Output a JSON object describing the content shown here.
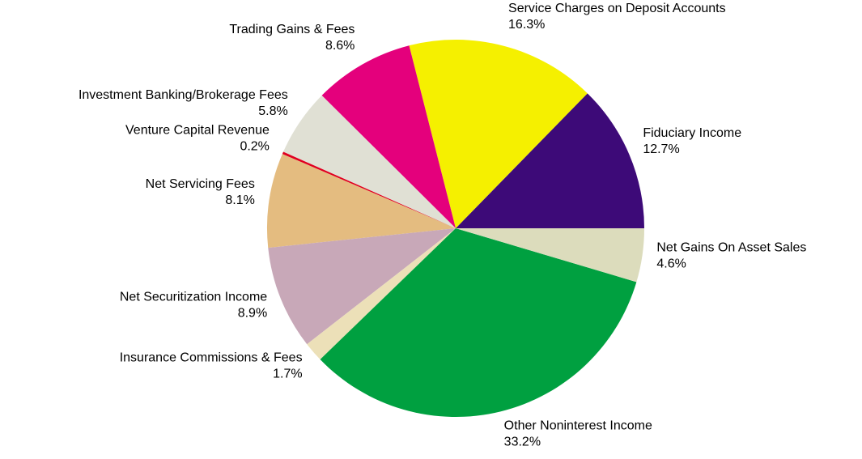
{
  "chart_data": {
    "type": "pie",
    "categories": [
      "Fiduciary Income",
      "Service Charges on Deposit Accounts",
      "Trading Gains & Fees",
      "Investment Banking/Brokerage Fees",
      "Venture Capital Revenue",
      "Net Servicing Fees",
      "Net Securitization Income",
      "Insurance Commissions & Fees",
      "Other Noninterest Income",
      "Net Gains On Asset Sales"
    ],
    "values": [
      12.7,
      16.3,
      8.6,
      5.8,
      0.2,
      8.1,
      8.9,
      1.7,
      33.2,
      4.6
    ],
    "value_labels": [
      "12.7%",
      "16.3%",
      "8.6%",
      "5.8%",
      "0.2%",
      "8.1%",
      "8.9%",
      "1.7%",
      "33.2%",
      "4.6%"
    ],
    "colors": [
      "#3d0a78",
      "#f5f000",
      "#e4007c",
      "#e0e0d4",
      "#e00020",
      "#e4bc80",
      "#c8a8b8",
      "#ece0b8",
      "#00a040",
      "#dcdcbc"
    ]
  }
}
